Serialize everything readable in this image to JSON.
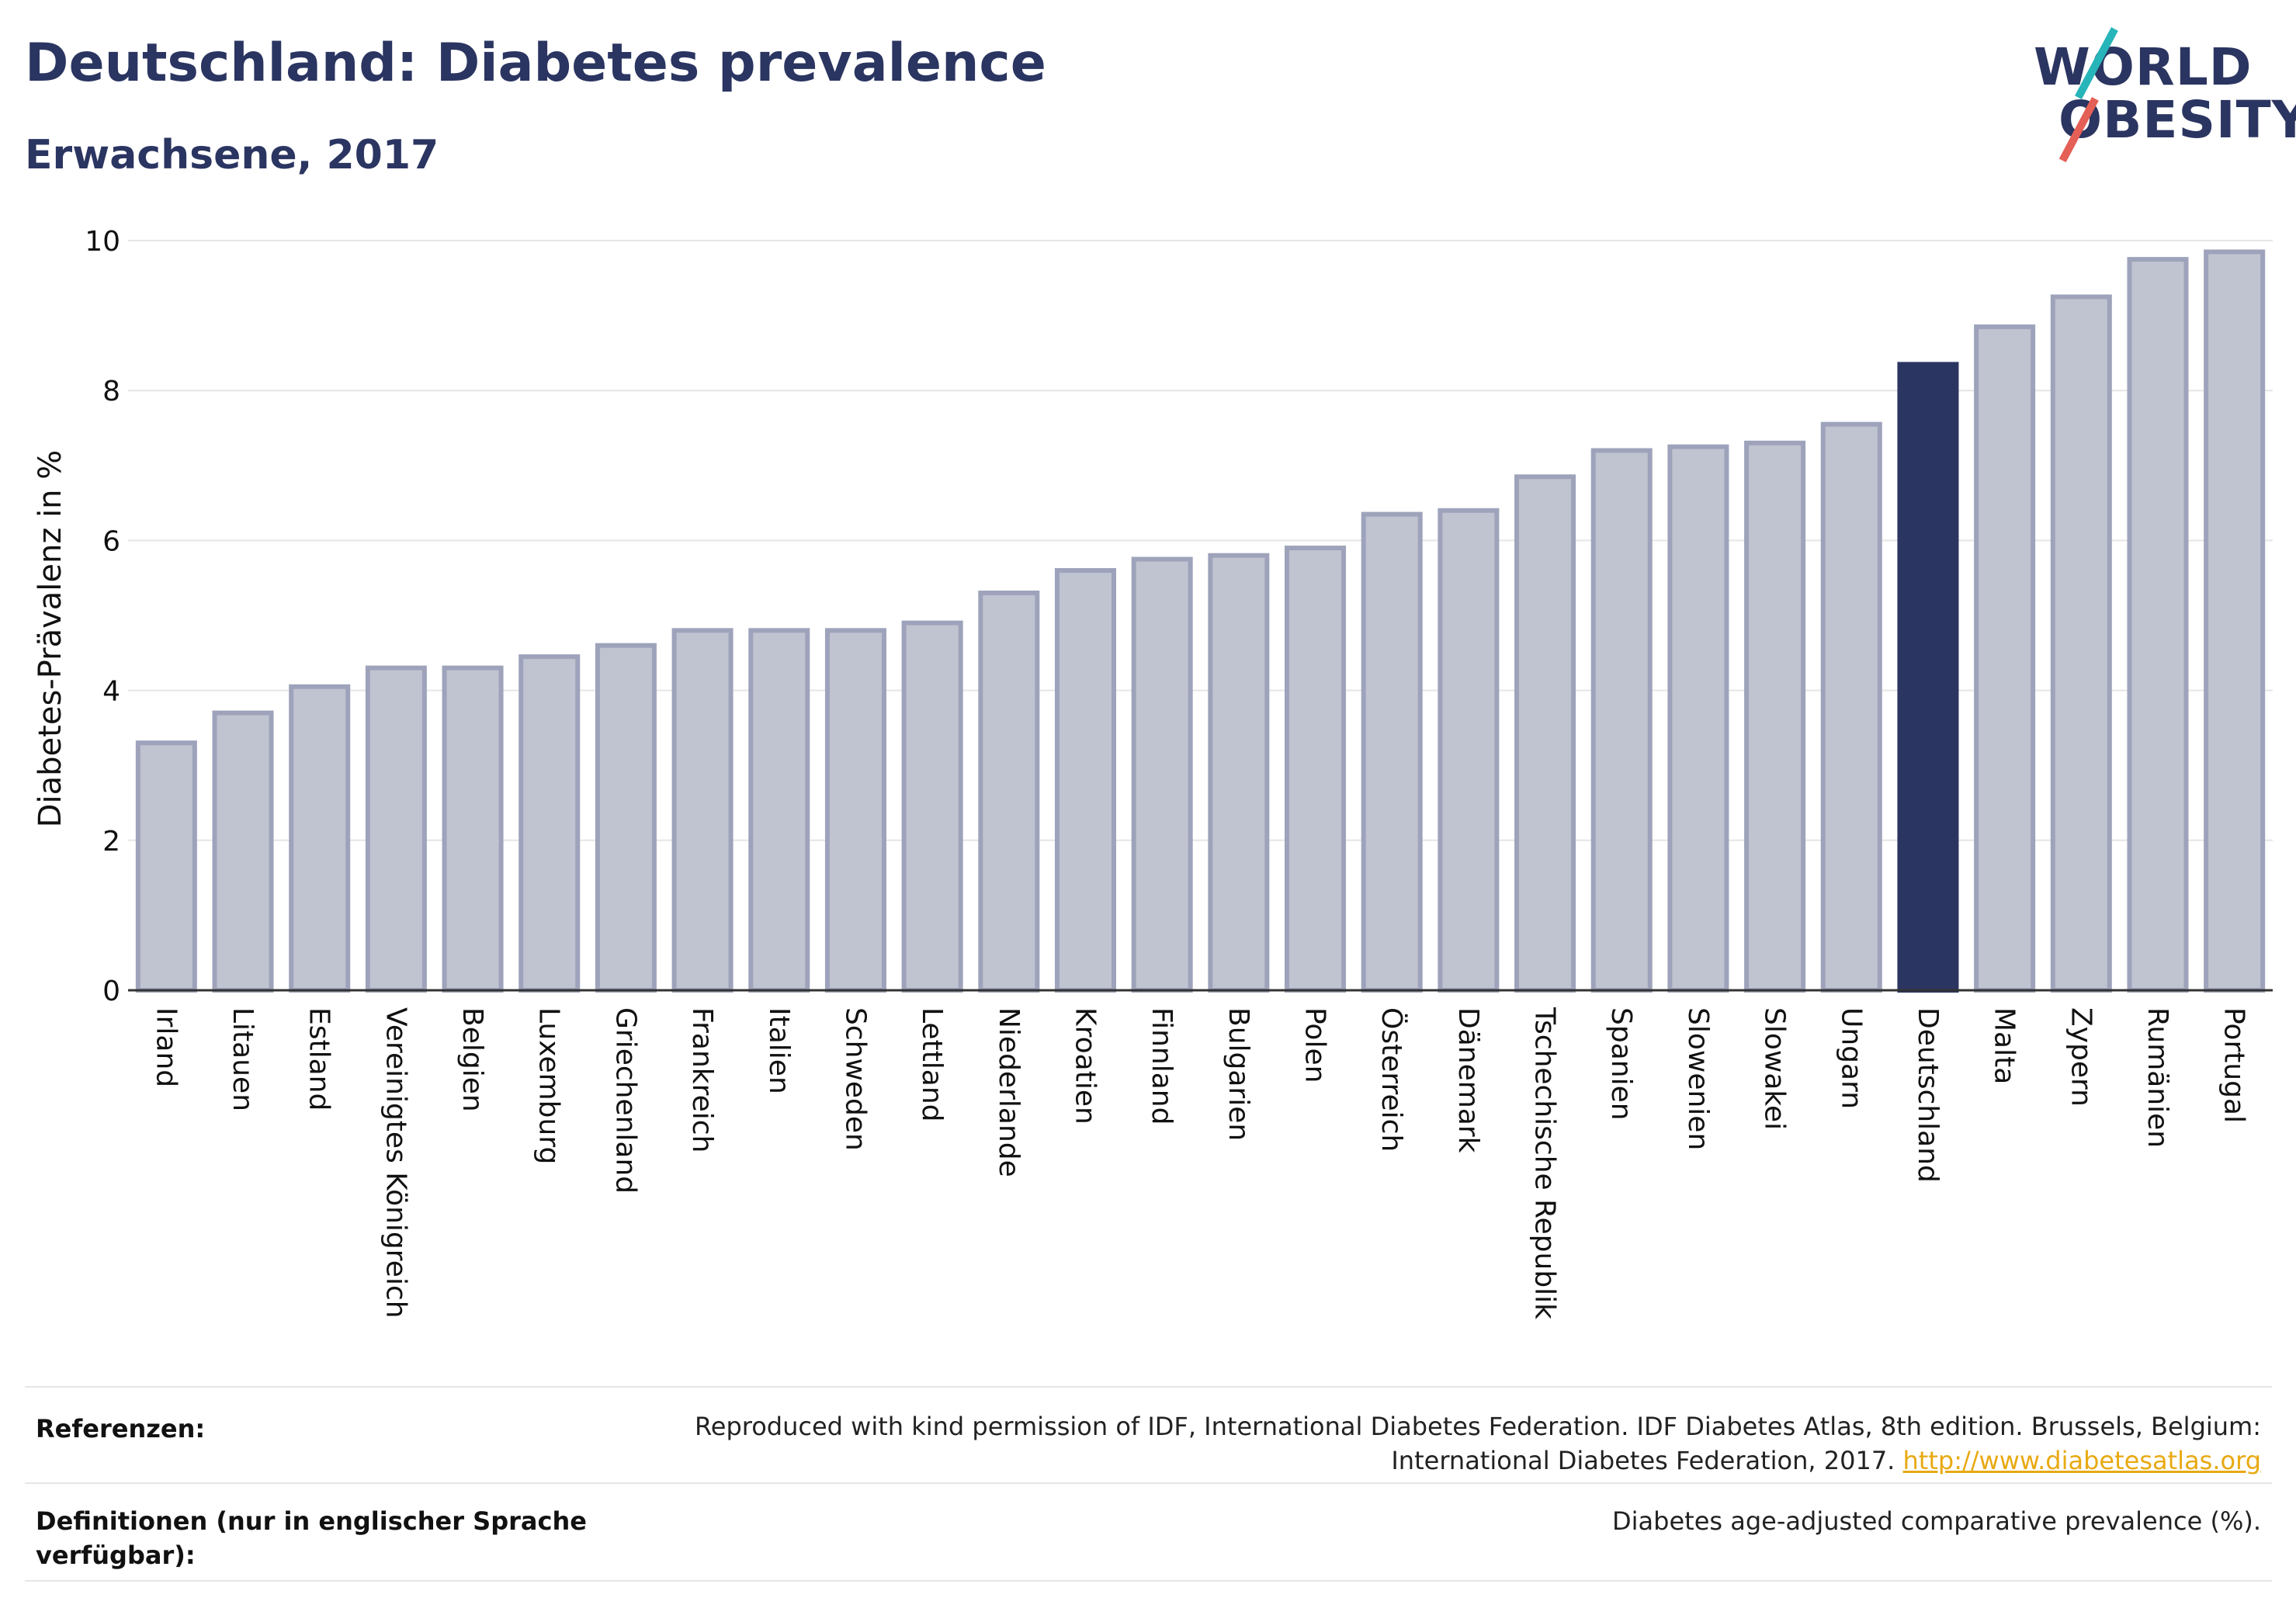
{
  "title": "Deutschland: Diabetes prevalence",
  "subtitle": "Erwachsene, 2017",
  "logo": {
    "line1": "WORLD",
    "line2": "OBESITY"
  },
  "colors": {
    "highlight": "#2b3561",
    "bar": "#c0c3d0",
    "bar_stroke": "#9ea3bb",
    "link": "#e8a912"
  },
  "chart_data": {
    "type": "bar",
    "ylabel": "Diabetes-Prävalenz in %",
    "ylim": [
      0,
      10
    ],
    "yticks": [
      0,
      2,
      4,
      6,
      8,
      10
    ],
    "grid": true,
    "highlight": "Deutschland",
    "categories": [
      "Irland",
      "Litauen",
      "Estland",
      "Vereinigtes Königreich",
      "Belgien",
      "Luxemburg",
      "Griechenland",
      "Frankreich",
      "Italien",
      "Schweden",
      "Lettland",
      "Niederlande",
      "Kroatien",
      "Finnland",
      "Bulgarien",
      "Polen",
      "Österreich",
      "Dänemark",
      "Tschechische Republik",
      "Spanien",
      "Slowenien",
      "Slowakei",
      "Ungarn",
      "Deutschland",
      "Malta",
      "Zypern",
      "Rumänien",
      "Portugal"
    ],
    "values": [
      3.3,
      3.7,
      4.05,
      4.3,
      4.3,
      4.45,
      4.6,
      4.8,
      4.8,
      4.8,
      4.9,
      5.3,
      5.6,
      5.75,
      5.8,
      5.9,
      6.35,
      6.4,
      6.85,
      7.2,
      7.25,
      7.3,
      7.55,
      8.35,
      8.85,
      9.25,
      9.75,
      9.85
    ]
  },
  "footer": {
    "references_label": "Referenzen:",
    "references_text_1": "Reproduced with kind permission of IDF, International Diabetes Federation. IDF Diabetes Atlas, 8th edition. Brussels, Belgium:",
    "references_text_2": "International Diabetes Federation, 2017.",
    "references_link": "http://www.diabetesatlas.org",
    "definitions_label_1": "Definitionen (nur in englischer Sprache",
    "definitions_label_2": "verfügbar):",
    "definitions_text": "Diabetes age-adjusted comparative prevalence (%)."
  }
}
